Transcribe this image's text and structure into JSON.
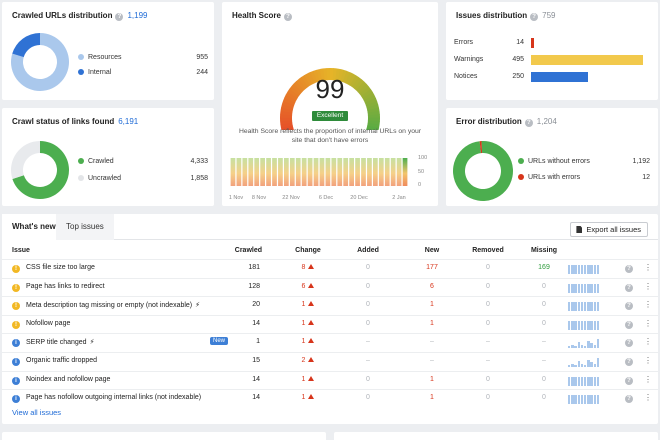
{
  "crawled_urls": {
    "title": "Crawled URLs distribution",
    "count": "1,199",
    "legend": [
      {
        "label": "Resources",
        "value": "955",
        "color": "#aac8ec"
      },
      {
        "label": "Internal",
        "value": "244",
        "color": "#2f72d4"
      }
    ],
    "fractions": [
      0.7965,
      0.2035
    ]
  },
  "health": {
    "title": "Health Score",
    "score": "99",
    "badge": "Excellent",
    "desc_line1": "Health Score reflects the proportion of internal URLs on your",
    "desc_line2": "site that don't have errors",
    "y_ticks": [
      "100",
      "50",
      "0"
    ],
    "x_ticks": [
      "1 Nov",
      "8 Nov",
      "22 Nov",
      "6 Dec",
      "20 Dec",
      "2 Jan"
    ],
    "gauge_value": 99
  },
  "issues_dist": {
    "title": "Issues distribution",
    "count": "759",
    "rows": [
      {
        "label": "Errors",
        "value": "14",
        "color": "#d7351b",
        "fraction": 0.028
      },
      {
        "label": "Warnings",
        "value": "495",
        "color": "#f2c94c",
        "fraction": 1.0
      },
      {
        "label": "Notices",
        "value": "250",
        "color": "#2f72d4",
        "fraction": 0.505
      }
    ]
  },
  "crawl_status": {
    "title": "Crawl status of links found",
    "count": "6,191",
    "legend": [
      {
        "label": "Crawled",
        "value": "4,333",
        "color": "#4cae4f"
      },
      {
        "label": "Uncrawled",
        "value": "1,858",
        "color": "#e8eaed"
      }
    ],
    "fractions": [
      0.7,
      0.3
    ]
  },
  "error_dist": {
    "title": "Error distribution",
    "count": "1,204",
    "legend": [
      {
        "label": "URLs without errors",
        "value": "1,192",
        "color": "#4cae4f"
      },
      {
        "label": "URLs with errors",
        "value": "12",
        "color": "#d7351b"
      }
    ],
    "fractions": [
      0.99,
      0.01
    ]
  },
  "issues_panel": {
    "tabs": [
      "What's new",
      "Top issues"
    ],
    "export_label": "Export all issues",
    "headers": [
      "Issue",
      "Crawled",
      "Change",
      "Added",
      "New",
      "Removed",
      "Missing"
    ],
    "view_all": "View all issues",
    "rows": [
      {
        "type": "warn",
        "name": "CSS file size too large",
        "crawled": "181",
        "change": "8",
        "added": "0",
        "new": "177",
        "removed": "0",
        "missing": "169",
        "bolt": false,
        "is_new": false
      },
      {
        "type": "warn",
        "name": "Page has links to redirect",
        "crawled": "128",
        "change": "6",
        "added": "0",
        "new": "6",
        "removed": "0",
        "missing": "0",
        "bolt": false,
        "is_new": false
      },
      {
        "type": "warn",
        "name": "Meta description tag missing or empty (not indexable)",
        "crawled": "20",
        "change": "1",
        "added": "0",
        "new": "1",
        "removed": "0",
        "missing": "0",
        "bolt": true,
        "is_new": false
      },
      {
        "type": "warn",
        "name": "Nofollow page",
        "crawled": "14",
        "change": "1",
        "added": "0",
        "new": "1",
        "removed": "0",
        "missing": "0",
        "bolt": false,
        "is_new": false
      },
      {
        "type": "info",
        "name": "SERP title changed",
        "crawled": "1",
        "change": "1",
        "added": "–",
        "new": "–",
        "removed": "–",
        "missing": "–",
        "bolt": true,
        "is_new": true
      },
      {
        "type": "info",
        "name": "Organic traffic dropped",
        "crawled": "15",
        "change": "2",
        "added": "–",
        "new": "–",
        "removed": "–",
        "missing": "–",
        "bolt": false,
        "is_new": false
      },
      {
        "type": "info",
        "name": "Noindex and nofollow page",
        "crawled": "14",
        "change": "1",
        "added": "0",
        "new": "1",
        "removed": "0",
        "missing": "0",
        "bolt": false,
        "is_new": false
      },
      {
        "type": "info",
        "name": "Page has nofollow outgoing internal links (not indexable)",
        "crawled": "14",
        "change": "1",
        "added": "0",
        "new": "1",
        "removed": "0",
        "missing": "0",
        "bolt": false,
        "is_new": false
      }
    ],
    "new_badge": "New"
  }
}
